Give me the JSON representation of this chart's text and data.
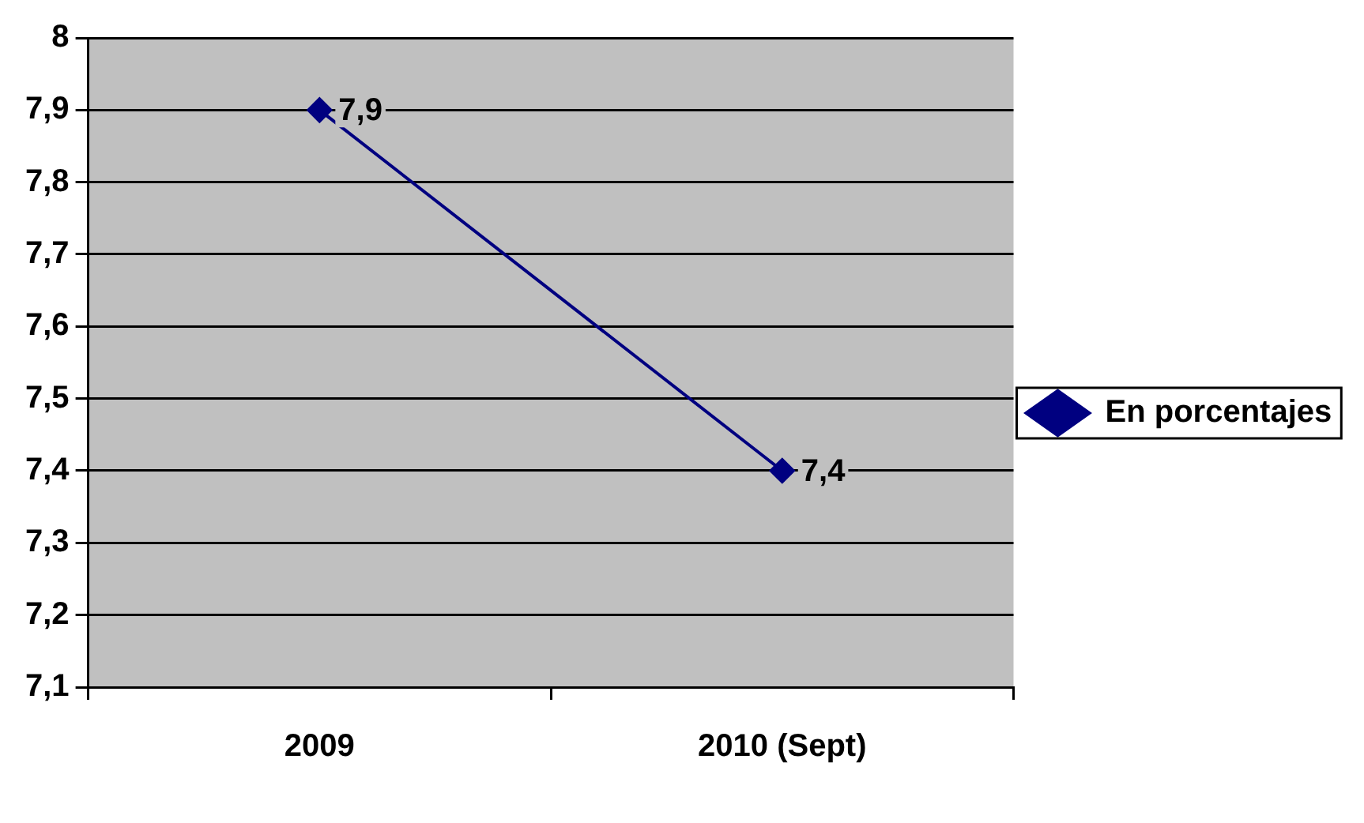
{
  "chart_data": {
    "type": "line",
    "categories": [
      "2009",
      "2010 (Sept)"
    ],
    "series": [
      {
        "name": "En porcentajes",
        "color": "#000080",
        "values": [
          7.9,
          7.4
        ],
        "value_labels": [
          "7,9",
          "7,4"
        ]
      }
    ],
    "ylim": [
      7.1,
      8
    ],
    "yticks": [
      {
        "value": 7.1,
        "label": "7,1"
      },
      {
        "value": 7.2,
        "label": "7,2"
      },
      {
        "value": 7.3,
        "label": "7,3"
      },
      {
        "value": 7.4,
        "label": "7,4"
      },
      {
        "value": 7.5,
        "label": "7,5"
      },
      {
        "value": 7.6,
        "label": "7,6"
      },
      {
        "value": 7.7,
        "label": "7,7"
      },
      {
        "value": 7.8,
        "label": "7,8"
      },
      {
        "value": 7.9,
        "label": "7,9"
      },
      {
        "value": 8,
        "label": "8"
      }
    ],
    "grid": "y",
    "legend": "right",
    "marker": "diamond",
    "line_style": "solid"
  }
}
